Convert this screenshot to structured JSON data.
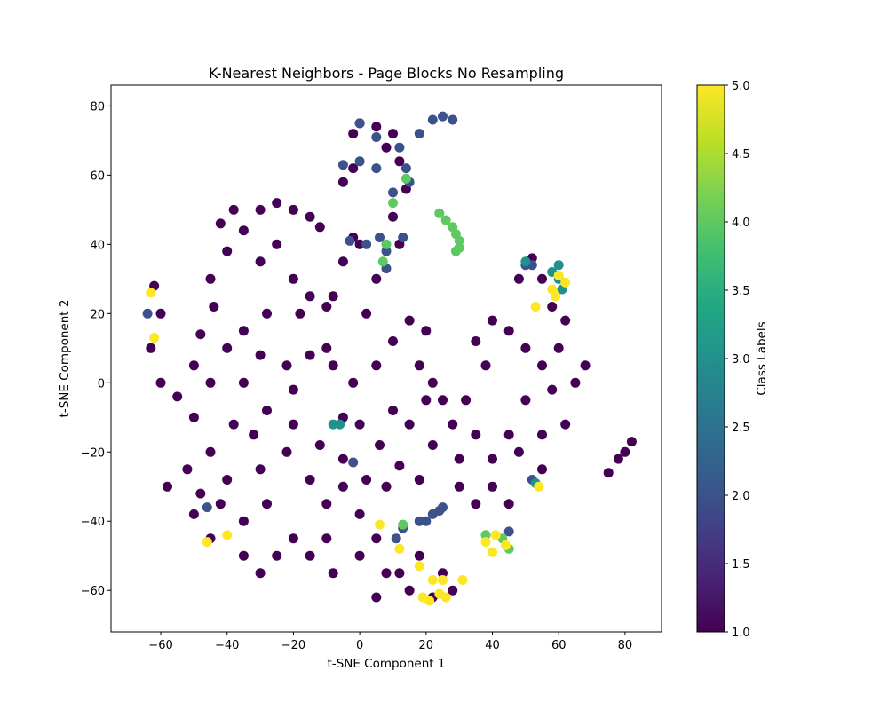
{
  "chart_data": {
    "type": "scatter",
    "title": "K-Nearest Neighbors - Page Blocks No Resampling",
    "xlabel": "t-SNE Component 1",
    "ylabel": "t-SNE Component 2",
    "xlim": [
      -75,
      91
    ],
    "ylim": [
      -72,
      86
    ],
    "xticks": [
      -60,
      -40,
      -20,
      0,
      20,
      40,
      60,
      80
    ],
    "yticks": [
      -60,
      -40,
      -20,
      0,
      20,
      40,
      60,
      80
    ],
    "grid": false,
    "colormap": "viridis",
    "colorbar": {
      "label": "Class Labels",
      "range": [
        1.0,
        5.0
      ],
      "ticks": [
        "1.0",
        "1.5",
        "2.0",
        "2.5",
        "3.0",
        "3.5",
        "4.0",
        "4.5",
        "5.0"
      ]
    },
    "class_colors": {
      "1": "#440154",
      "2": "#3b528b",
      "3": "#21918c",
      "4": "#5ec962",
      "5": "#fde725"
    },
    "clusters": [
      {
        "label": 1,
        "points": [
          [
            -62,
            28
          ],
          [
            -60,
            20
          ],
          [
            -63,
            10
          ],
          [
            -60,
            0
          ],
          [
            -55,
            -4
          ],
          [
            -50,
            5
          ],
          [
            -48,
            14
          ],
          [
            -44,
            22
          ],
          [
            -45,
            30
          ],
          [
            -40,
            38
          ],
          [
            -42,
            46
          ],
          [
            -38,
            50
          ],
          [
            -35,
            44
          ],
          [
            -30,
            50
          ],
          [
            -25,
            52
          ],
          [
            -20,
            50
          ],
          [
            -15,
            48
          ],
          [
            -12,
            45
          ],
          [
            -25,
            40
          ],
          [
            -30,
            35
          ],
          [
            -20,
            30
          ],
          [
            -15,
            25
          ],
          [
            -10,
            22
          ],
          [
            -18,
            20
          ],
          [
            -28,
            20
          ],
          [
            -35,
            15
          ],
          [
            -40,
            10
          ],
          [
            -45,
            0
          ],
          [
            -50,
            -10
          ],
          [
            -45,
            -20
          ],
          [
            -40,
            -28
          ],
          [
            -50,
            -38
          ],
          [
            -45,
            -45
          ],
          [
            -35,
            -40
          ],
          [
            -28,
            -35
          ],
          [
            -30,
            -25
          ],
          [
            -22,
            -20
          ],
          [
            -15,
            -28
          ],
          [
            -10,
            -35
          ],
          [
            -20,
            -45
          ],
          [
            -15,
            -50
          ],
          [
            -8,
            -55
          ],
          [
            0,
            -50
          ],
          [
            5,
            -45
          ],
          [
            8,
            -55
          ],
          [
            5,
            -62
          ],
          [
            12,
            -55
          ],
          [
            18,
            -50
          ],
          [
            25,
            -55
          ],
          [
            28,
            -60
          ],
          [
            22,
            -62
          ],
          [
            15,
            -60
          ],
          [
            -5,
            -10
          ],
          [
            -2,
            0
          ],
          [
            -8,
            5
          ],
          [
            -15,
            8
          ],
          [
            -22,
            5
          ],
          [
            -30,
            8
          ],
          [
            -35,
            0
          ],
          [
            -28,
            -8
          ],
          [
            -20,
            -12
          ],
          [
            -12,
            -18
          ],
          [
            -5,
            -22
          ],
          [
            2,
            -28
          ],
          [
            8,
            -30
          ],
          [
            12,
            -24
          ],
          [
            6,
            -18
          ],
          [
            0,
            -12
          ],
          [
            5,
            5
          ],
          [
            10,
            12
          ],
          [
            15,
            18
          ],
          [
            20,
            15
          ],
          [
            18,
            5
          ],
          [
            22,
            0
          ],
          [
            25,
            -5
          ],
          [
            28,
            -12
          ],
          [
            22,
            -18
          ],
          [
            18,
            -28
          ],
          [
            30,
            -22
          ],
          [
            35,
            -15
          ],
          [
            32,
            -5
          ],
          [
            38,
            5
          ],
          [
            35,
            12
          ],
          [
            40,
            18
          ],
          [
            45,
            15
          ],
          [
            50,
            10
          ],
          [
            55,
            5
          ],
          [
            50,
            -5
          ],
          [
            45,
            -15
          ],
          [
            40,
            -22
          ],
          [
            48,
            -20
          ],
          [
            55,
            -25
          ],
          [
            55,
            -15
          ],
          [
            62,
            -12
          ],
          [
            58,
            -2
          ],
          [
            65,
            0
          ],
          [
            68,
            5
          ],
          [
            60,
            10
          ],
          [
            62,
            18
          ],
          [
            58,
            22
          ],
          [
            55,
            30
          ],
          [
            52,
            36
          ],
          [
            48,
            30
          ],
          [
            -5,
            35
          ],
          [
            0,
            40
          ],
          [
            5,
            30
          ],
          [
            -8,
            25
          ],
          [
            2,
            20
          ],
          [
            -2,
            42
          ],
          [
            -5,
            58
          ],
          [
            -2,
            62
          ],
          [
            -2,
            72
          ],
          [
            0,
            75
          ],
          [
            5,
            74
          ],
          [
            10,
            72
          ],
          [
            8,
            68
          ],
          [
            12,
            64
          ],
          [
            14,
            56
          ],
          [
            10,
            48
          ],
          [
            12,
            40
          ],
          [
            75,
            -26
          ],
          [
            78,
            -22
          ],
          [
            80,
            -20
          ],
          [
            82,
            -17
          ],
          [
            -58,
            -30
          ],
          [
            -52,
            -25
          ],
          [
            -38,
            -12
          ],
          [
            -32,
            -15
          ],
          [
            -5,
            -30
          ],
          [
            0,
            -38
          ],
          [
            -10,
            -45
          ],
          [
            -25,
            -50
          ],
          [
            -30,
            -55
          ],
          [
            -35,
            -50
          ],
          [
            35,
            -35
          ],
          [
            30,
            -30
          ],
          [
            40,
            -30
          ],
          [
            45,
            -35
          ],
          [
            -10,
            10
          ],
          [
            -20,
            -2
          ],
          [
            10,
            -8
          ],
          [
            15,
            -12
          ],
          [
            20,
            -5
          ],
          [
            -42,
            -35
          ],
          [
            -48,
            -32
          ]
        ]
      },
      {
        "label": 2,
        "points": [
          [
            0,
            75
          ],
          [
            5,
            71
          ],
          [
            12,
            68
          ],
          [
            14,
            62
          ],
          [
            15,
            58
          ],
          [
            10,
            55
          ],
          [
            5,
            62
          ],
          [
            0,
            64
          ],
          [
            -5,
            63
          ],
          [
            18,
            72
          ],
          [
            22,
            76
          ],
          [
            25,
            77
          ],
          [
            28,
            76
          ],
          [
            13,
            42
          ],
          [
            6,
            42
          ],
          [
            2,
            40
          ],
          [
            -3,
            41
          ],
          [
            -64,
            20
          ],
          [
            -46,
            -36
          ],
          [
            20,
            -40
          ],
          [
            22,
            -38
          ],
          [
            24,
            -37
          ],
          [
            25,
            -36
          ],
          [
            18,
            -40
          ],
          [
            13,
            -42
          ],
          [
            11,
            -45
          ],
          [
            -2,
            -23
          ],
          [
            50,
            34
          ],
          [
            52,
            -28
          ],
          [
            45,
            -43
          ],
          [
            52,
            34
          ],
          [
            8,
            33
          ],
          [
            8,
            38
          ]
        ]
      },
      {
        "label": 3,
        "points": [
          [
            58,
            32
          ],
          [
            60,
            34
          ],
          [
            61,
            27
          ],
          [
            -6,
            -12
          ],
          [
            -8,
            -12
          ],
          [
            53,
            -29
          ],
          [
            50,
            35
          ],
          [
            60,
            30
          ]
        ]
      },
      {
        "label": 4,
        "points": [
          [
            24,
            49
          ],
          [
            26,
            47
          ],
          [
            28,
            45
          ],
          [
            29,
            43
          ],
          [
            30,
            41
          ],
          [
            30,
            39
          ],
          [
            29,
            38
          ],
          [
            14,
            59
          ],
          [
            10,
            52
          ],
          [
            7,
            35
          ],
          [
            43,
            -45
          ],
          [
            45,
            -48
          ],
          [
            38,
            -44
          ],
          [
            13,
            -41
          ],
          [
            8,
            40
          ]
        ]
      },
      {
        "label": 5,
        "points": [
          [
            -62,
            13
          ],
          [
            -63,
            26
          ],
          [
            -40,
            -44
          ],
          [
            -46,
            -46
          ],
          [
            6,
            -41
          ],
          [
            19,
            -62
          ],
          [
            21,
            -63
          ],
          [
            24,
            -61
          ],
          [
            26,
            -62
          ],
          [
            22,
            -57
          ],
          [
            38,
            -46
          ],
          [
            40,
            -49
          ],
          [
            41,
            -44
          ],
          [
            44,
            -47
          ],
          [
            58,
            27
          ],
          [
            60,
            31
          ],
          [
            62,
            29
          ],
          [
            59,
            25
          ],
          [
            53,
            22
          ],
          [
            54,
            -30
          ],
          [
            12,
            -48
          ],
          [
            18,
            -53
          ],
          [
            25,
            -57
          ],
          [
            31,
            -57
          ]
        ]
      }
    ]
  }
}
